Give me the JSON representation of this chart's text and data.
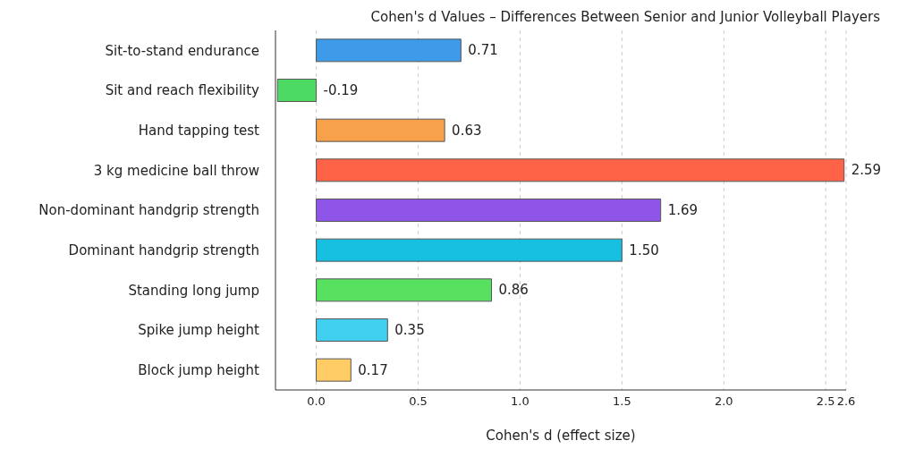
{
  "chart_data": {
    "type": "bar",
    "orientation": "horizontal",
    "title": "Cohen's d Values – Differences Between Senior and Junior Volleyball Players",
    "xlabel": "Cohen's d (effect size)",
    "categories": [
      "Sit-to-stand endurance",
      "Sit and reach flexibility",
      "Hand tapping test",
      "3 kg medicine ball throw",
      "Non-dominant handgrip strength",
      "Dominant handgrip strength",
      "Standing long jump",
      "Spike jump height",
      "Block jump height"
    ],
    "values": [
      0.71,
      -0.19,
      0.63,
      2.59,
      1.69,
      1.5,
      0.86,
      0.35,
      0.17
    ],
    "value_labels": [
      "0.71",
      "-0.19",
      "0.63",
      "2.59",
      "1.69",
      "1.50",
      "0.86",
      "0.35",
      "0.17"
    ],
    "colors": [
      "#3d9be9",
      "#4cd964",
      "#f7a14a",
      "#ff6347",
      "#8e55e8",
      "#17bfe0",
      "#58e060",
      "#40cfee",
      "#ffcc66"
    ],
    "xlim": [
      -0.2,
      2.6
    ],
    "xticks": [
      {
        "value": 0,
        "label": "0.0"
      },
      0.5,
      {
        "value": 1,
        "label": "1.0"
      },
      1.5,
      {
        "value": 2,
        "label": "2.0"
      },
      2.5,
      2.6
    ],
    "grid": "x",
    "legend": false
  }
}
